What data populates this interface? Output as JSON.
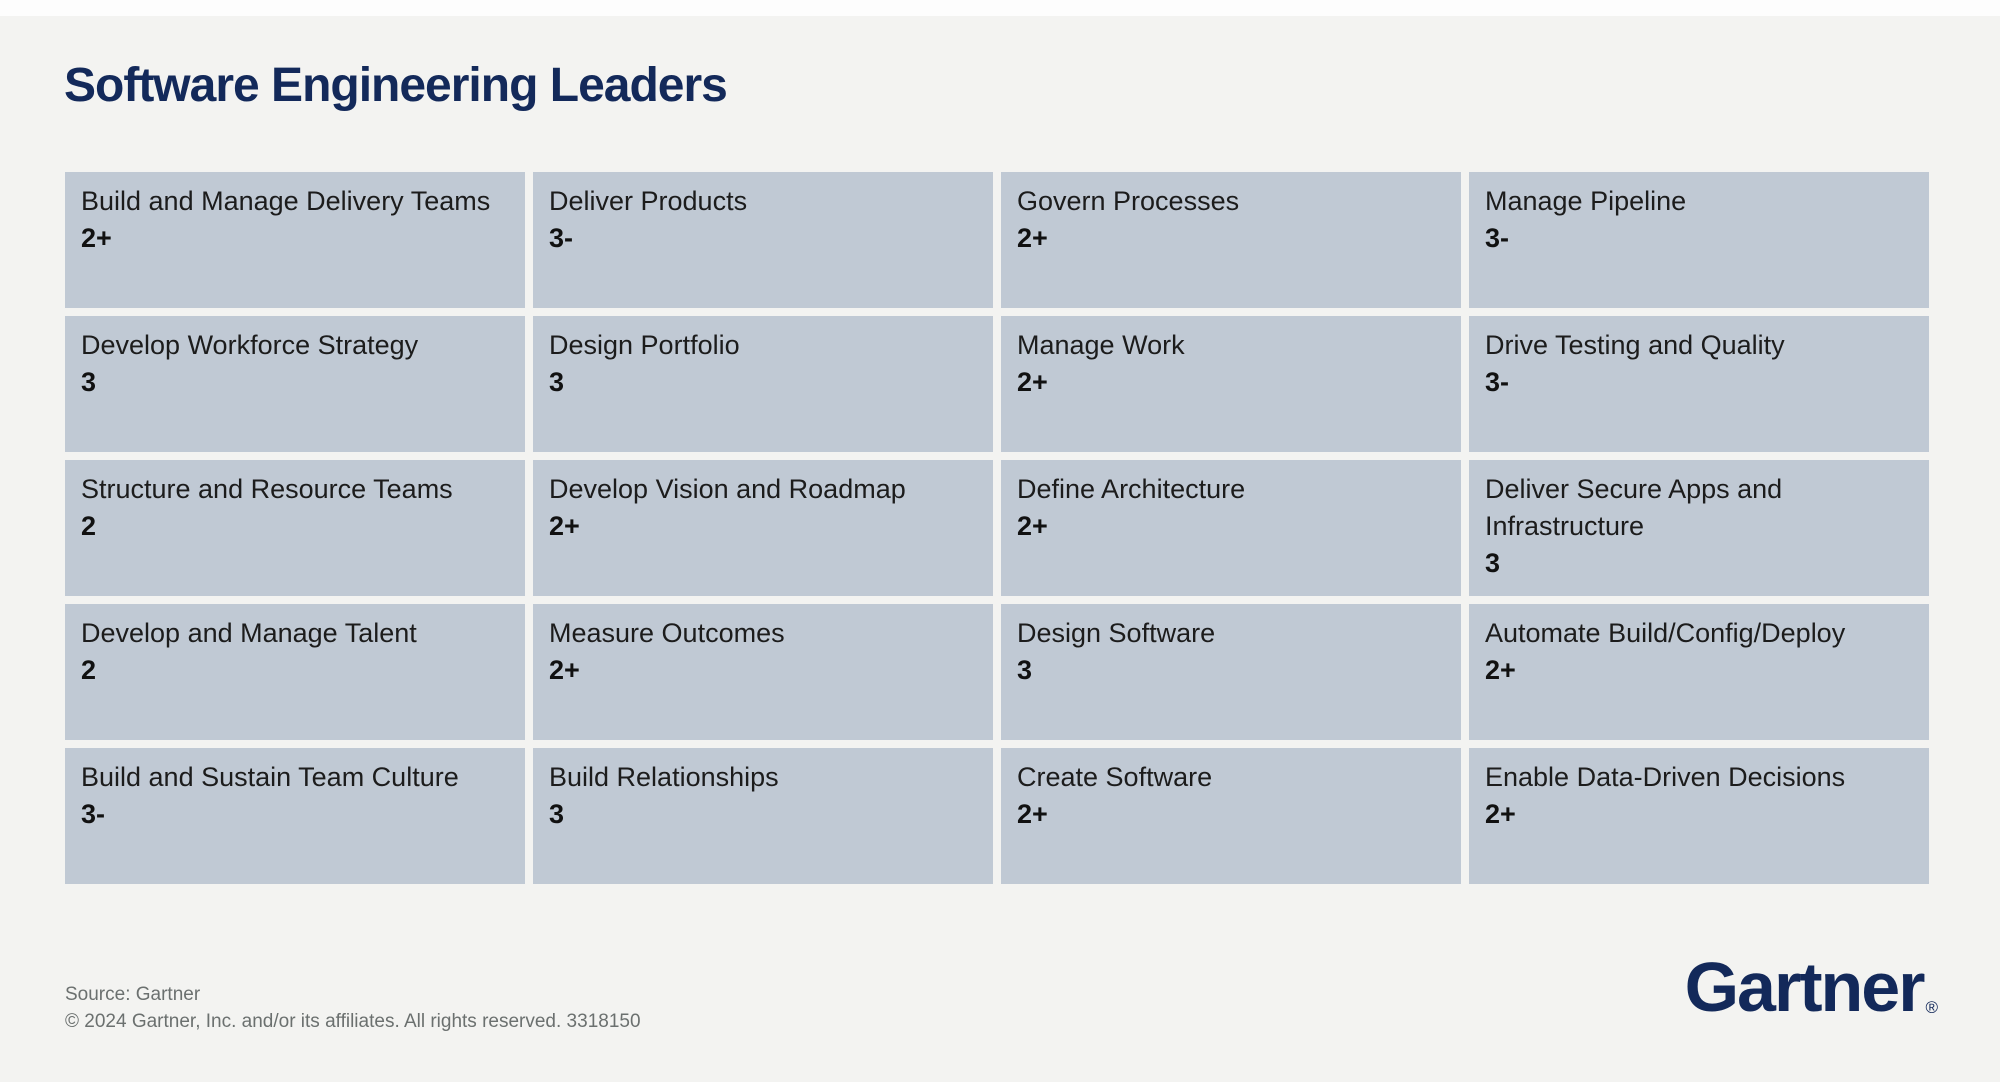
{
  "page": {
    "title": "Software Engineering Leaders"
  },
  "colors": {
    "navy": "#13295a",
    "card": "#c0c9d4",
    "background": "#f3f3f1",
    "footer_text": "#6b706f"
  },
  "grid": {
    "columns": 4,
    "rows": 5,
    "cards": [
      {
        "label": "Build and Manage Delivery Teams",
        "rating": "2+"
      },
      {
        "label": "Deliver Products",
        "rating": "3-"
      },
      {
        "label": "Govern Processes",
        "rating": "2+"
      },
      {
        "label": "Manage Pipeline",
        "rating": "3-"
      },
      {
        "label": "Develop Workforce Strategy",
        "rating": "3"
      },
      {
        "label": "Design Portfolio",
        "rating": "3"
      },
      {
        "label": "Manage Work",
        "rating": "2+"
      },
      {
        "label": "Drive Testing and Quality",
        "rating": "3-"
      },
      {
        "label": "Structure and Resource Teams",
        "rating": "2"
      },
      {
        "label": "Develop Vision and Roadmap",
        "rating": "2+"
      },
      {
        "label": "Define Architecture",
        "rating": "2+"
      },
      {
        "label": "Deliver Secure Apps and Infrastructure",
        "rating": "3"
      },
      {
        "label": "Develop and Manage Talent",
        "rating": "2"
      },
      {
        "label": "Measure Outcomes",
        "rating": "2+"
      },
      {
        "label": "Design Software",
        "rating": "3"
      },
      {
        "label": "Automate Build/Config/Deploy",
        "rating": "2+"
      },
      {
        "label": "Build and Sustain Team Culture",
        "rating": "3-"
      },
      {
        "label": "Build Relationships",
        "rating": "3"
      },
      {
        "label": "Create Software",
        "rating": "2+"
      },
      {
        "label": "Enable Data-Driven Decisions",
        "rating": "2+"
      }
    ]
  },
  "footer": {
    "source": "Source: Gartner",
    "copyright": "© 2024 Gartner, Inc. and/or its affiliates. All rights reserved. 3318150",
    "logo_text": "Gartner",
    "registered_mark": "®"
  }
}
